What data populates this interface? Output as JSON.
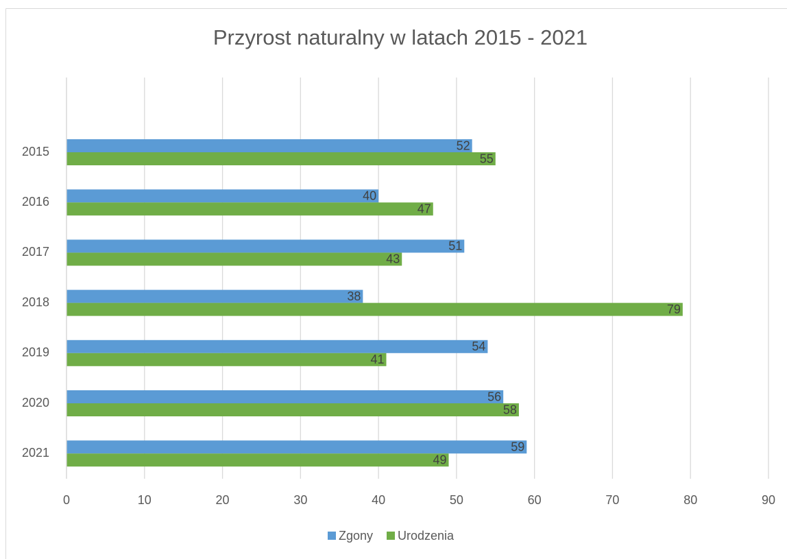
{
  "chart_data": {
    "type": "barh",
    "title": "Przyrost naturalny w latach 2015 - 2021",
    "categories": [
      "2015",
      "2016",
      "2017",
      "2018",
      "2019",
      "2020",
      "2021"
    ],
    "series": [
      {
        "name": "Zgony",
        "color": "#5b9bd5",
        "values": [
          52,
          40,
          51,
          38,
          54,
          56,
          59
        ]
      },
      {
        "name": "Urodzenia",
        "color": "#70ad47",
        "values": [
          55,
          47,
          43,
          79,
          41,
          58,
          49
        ]
      }
    ],
    "xlim": [
      0,
      90
    ],
    "xticks": [
      0,
      10,
      20,
      30,
      40,
      50,
      60,
      70,
      80,
      90
    ],
    "grid": true,
    "legend": "bottom"
  }
}
